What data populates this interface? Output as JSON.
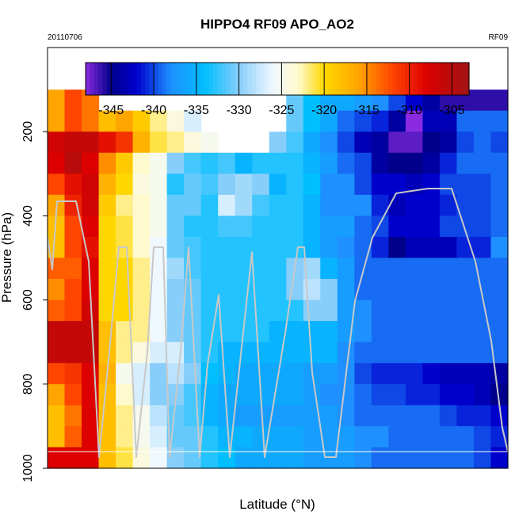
{
  "chart_data": {
    "type": "heatmap",
    "title": "HIPPO4 RF09 APO_AO2",
    "subtitle_left": "20110706",
    "subtitle_right": "RF09",
    "xlabel": "Latitude (°N)",
    "ylabel": "Pressure (hPa)",
    "ylim": [
      1000,
      0
    ],
    "yticks": [
      200,
      400,
      600,
      800,
      1000
    ],
    "colorbar": {
      "ticks": [
        -345,
        -340,
        -335,
        -330,
        -325,
        -320,
        -315,
        -310,
        -305
      ],
      "range": [
        -348,
        -303
      ],
      "placement": "top-inside"
    },
    "pressure_levels": [
      125,
      175,
      225,
      275,
      325,
      375,
      425,
      475,
      525,
      575,
      625,
      675,
      725,
      775,
      825,
      875,
      925,
      975
    ],
    "values": [
      [
        -316,
        -312,
        -314,
        -999,
        -999,
        -999,
        -999,
        -999,
        -999,
        -999,
        -999,
        -999,
        -999,
        -999,
        -331,
        -334,
        -336,
        -336,
        -337,
        -338,
        -340,
        -342,
        -344,
        -346,
        -346,
        -346,
        -346
      ],
      [
        -316,
        -312,
        -314,
        -318,
        -316,
        -319,
        -322,
        -324,
        -327,
        -999,
        -999,
        -999,
        -999,
        -999,
        -331,
        -334,
        -336,
        -339,
        -340,
        -341,
        -344,
        -348,
        -343,
        -343,
        -339,
        -339,
        -339
      ],
      [
        -307,
        -306,
        -306,
        -309,
        -311,
        -317,
        -321,
        -322,
        -324,
        -325,
        -999,
        -999,
        -999,
        -330,
        -332,
        -336,
        -338,
        -340,
        -343,
        -344,
        -347,
        -347,
        -345,
        -344,
        -340,
        -339,
        -340
      ],
      [
        -308,
        -305,
        -308,
        -315,
        -319,
        -323,
        -325,
        -330,
        -332,
        -333,
        -332,
        -335,
        -333,
        -333,
        -333,
        -335,
        -337,
        -339,
        -340,
        -344,
        -345,
        -345,
        -344,
        -341,
        -339,
        -339,
        -339
      ],
      [
        -312,
        -309,
        -307,
        -317,
        -320,
        -324,
        -325,
        -333,
        -331,
        -332,
        -330,
        -329,
        -330,
        -335,
        -333,
        -334,
        -338,
        -338,
        -340,
        -342,
        -342,
        -343,
        -342,
        -340,
        -340,
        -340,
        -339
      ],
      [
        -316,
        -310,
        -307,
        -319,
        -322,
        -323,
        -325,
        -331,
        -331,
        -333,
        -327,
        -329,
        -332,
        -333,
        -333,
        -335,
        -338,
        -338,
        -338,
        -341,
        -343,
        -342,
        -342,
        -341,
        -340,
        -340,
        -339
      ],
      [
        -318,
        -312,
        -308,
        -320,
        -321,
        -323,
        -325,
        -331,
        -333,
        -333,
        -332,
        -332,
        -333,
        -333,
        -333,
        -335,
        -337,
        -337,
        -339,
        -340,
        -342,
        -342,
        -342,
        -340,
        -340,
        -340,
        -339
      ],
      [
        -318,
        -312,
        -309,
        -320,
        -321,
        -323,
        -326,
        -331,
        -332,
        -333,
        -333,
        -333,
        -333,
        -333,
        -333,
        -335,
        -337,
        -338,
        -339,
        -341,
        -345,
        -343,
        -343,
        -343,
        -341,
        -341,
        -338
      ],
      [
        -313,
        -313,
        -308,
        -320,
        -320,
        -322,
        -326,
        -329,
        -332,
        -333,
        -333,
        -333,
        -333,
        -333,
        -330,
        -329,
        -335,
        -337,
        -339,
        -339,
        -339,
        -339,
        -339,
        -339,
        -339,
        -339,
        -339
      ],
      [
        -315,
        -312,
        -308,
        -320,
        -320,
        -322,
        -326,
        -330,
        -331,
        -333,
        -333,
        -333,
        -333,
        -333,
        -330,
        -328,
        -330,
        -337,
        -339,
        -339,
        -339,
        -339,
        -339,
        -339,
        -339,
        -339,
        -339
      ],
      [
        -313,
        -312,
        -307,
        -320,
        -320,
        -322,
        -326,
        -330,
        -331,
        -333,
        -333,
        -333,
        -333,
        -333,
        -333,
        -330,
        -330,
        -337,
        -338,
        -339,
        -339,
        -339,
        -339,
        -339,
        -339,
        -339,
        -339
      ],
      [
        -306,
        -306,
        -306,
        -318,
        -322,
        -322,
        -326,
        -330,
        -331,
        -333,
        -333,
        -333,
        -333,
        -335,
        -335,
        -335,
        -335,
        -337,
        -338,
        -339,
        -339,
        -339,
        -339,
        -339,
        -339,
        -339,
        -339
      ],
      [
        -306,
        -306,
        -306,
        -318,
        -322,
        -324,
        -327,
        -327,
        -331,
        -333,
        -335,
        -335,
        -335,
        -335,
        -335,
        -335,
        -335,
        -338,
        -339,
        -339,
        -339,
        -339,
        -339,
        -339,
        -339,
        -339,
        -339
      ],
      [
        -312,
        -311,
        -308,
        -317,
        -325,
        -327,
        -330,
        -328,
        -330,
        -334,
        -335,
        -336,
        -336,
        -336,
        -336,
        -337,
        -337,
        -338,
        -340,
        -341,
        -341,
        -341,
        -342,
        -343,
        -343,
        -343,
        -344
      ],
      [
        -316,
        -312,
        -308,
        -318,
        -323,
        -327,
        -330,
        -330,
        -332,
        -335,
        -336,
        -336,
        -336,
        -336,
        -336,
        -337,
        -338,
        -338,
        -339,
        -340,
        -340,
        -341,
        -341,
        -342,
        -342,
        -343,
        -345
      ],
      [
        -318,
        -314,
        -308,
        -318,
        -322,
        -325,
        -328,
        -331,
        -332,
        -335,
        -336,
        -337,
        -337,
        -337,
        -337,
        -337,
        -337,
        -338,
        -339,
        -339,
        -339,
        -339,
        -339,
        -340,
        -341,
        -341,
        -342
      ],
      [
        -318,
        -313,
        -308,
        -318,
        -322,
        -325,
        -327,
        -331,
        -331,
        -333,
        -335,
        -335,
        -336,
        -336,
        -336,
        -337,
        -337,
        -337,
        -338,
        -338,
        -339,
        -339,
        -339,
        -339,
        -339,
        -340,
        -341
      ],
      [
        -308,
        -308,
        -308,
        -318,
        -321,
        -324,
        -326,
        -330,
        -331,
        -333,
        -334,
        -336,
        -336,
        -336,
        -336,
        -337,
        -337,
        -337,
        -338,
        -339,
        -339,
        -339,
        -339,
        -339,
        -339,
        -340,
        -342
      ]
    ],
    "missing_value": -999,
    "grid": false,
    "legend": "none"
  }
}
